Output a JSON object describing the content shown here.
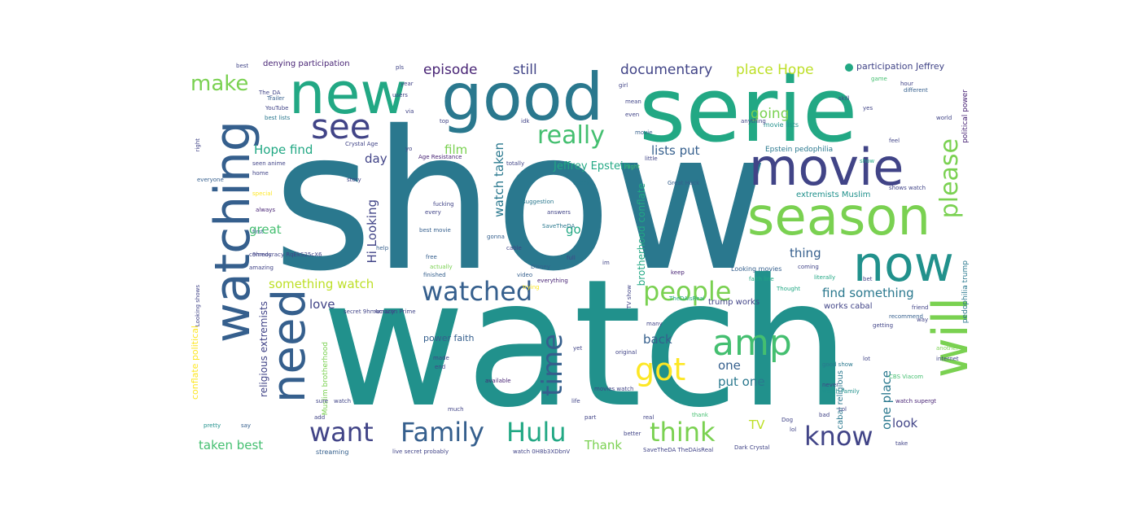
{
  "colors": {
    "background": "#ffffff",
    "palette": [
      "#440154",
      "#482475",
      "#414487",
      "#355f8d",
      "#2a788e",
      "#21918c",
      "#22a884",
      "#44bf70",
      "#7ad151",
      "#bddf26",
      "#fde725"
    ]
  },
  "words": [
    {
      "text": "show",
      "color": "#2a788e"
    },
    {
      "text": "watch",
      "color": "#21918c"
    },
    {
      "text": "serie",
      "color": "#22a884"
    },
    {
      "text": "good",
      "color": "#2a788e"
    },
    {
      "text": "new",
      "color": "#22a884"
    },
    {
      "text": "watching",
      "color": "#355f8d"
    },
    {
      "text": "movie",
      "color": "#414487"
    },
    {
      "text": "season",
      "color": "#7ad151"
    },
    {
      "text": "now",
      "color": "#21918c"
    },
    {
      "text": "will",
      "color": "#7ad151"
    },
    {
      "text": "need",
      "color": "#355f8d"
    },
    {
      "text": "see",
      "color": "#414487"
    },
    {
      "text": "amp",
      "color": "#44bf70"
    },
    {
      "text": "got",
      "color": "#fde725"
    },
    {
      "text": "time",
      "color": "#355f8d"
    },
    {
      "text": "watched",
      "color": "#355f8d"
    },
    {
      "text": "people",
      "color": "#7ad151"
    },
    {
      "text": "really",
      "color": "#44bf70"
    },
    {
      "text": "please",
      "color": "#7ad151"
    },
    {
      "text": "want",
      "color": "#414487"
    },
    {
      "text": "Family",
      "color": "#355f8d"
    },
    {
      "text": "Hulu",
      "color": "#22a884"
    },
    {
      "text": "think",
      "color": "#7ad151"
    },
    {
      "text": "know",
      "color": "#414487"
    },
    {
      "text": "make",
      "color": "#7ad151"
    },
    {
      "text": "episode",
      "color": "#482475"
    },
    {
      "text": "still",
      "color": "#414487"
    },
    {
      "text": "documentary",
      "color": "#414487"
    },
    {
      "text": "place Hope",
      "color": "#bddf26"
    },
    {
      "text": "going",
      "color": "#7ad151"
    },
    {
      "text": "Hope find",
      "color": "#22a884"
    },
    {
      "text": "film",
      "color": "#7ad151"
    },
    {
      "text": "day",
      "color": "#414487"
    },
    {
      "text": "great",
      "color": "#44bf70"
    },
    {
      "text": "lists put",
      "color": "#355f8d"
    },
    {
      "text": "Jeffrey Epstein",
      "color": "#22a884"
    },
    {
      "text": "watch taken",
      "color": "#2a788e"
    },
    {
      "text": "Hi Looking",
      "color": "#414487"
    },
    {
      "text": "go",
      "color": "#22a884"
    },
    {
      "text": "something watch",
      "color": "#bddf26"
    },
    {
      "text": "thing",
      "color": "#355f8d"
    },
    {
      "text": "find something",
      "color": "#2a788e"
    },
    {
      "text": "love",
      "color": "#414487"
    },
    {
      "text": "back",
      "color": "#355f8d"
    },
    {
      "text": "one",
      "color": "#355f8d"
    },
    {
      "text": "put one",
      "color": "#2a788e"
    },
    {
      "text": "one place",
      "color": "#2a788e"
    },
    {
      "text": "look",
      "color": "#414487"
    },
    {
      "text": "TV",
      "color": "#bddf26"
    },
    {
      "text": "Thank",
      "color": "#7ad151"
    },
    {
      "text": "taken best",
      "color": "#44bf70"
    },
    {
      "text": "denying participation",
      "color": "#482475"
    },
    {
      "text": "participation Jeffrey",
      "color": "#414487"
    },
    {
      "text": "brotherhood conflate",
      "color": "#22a884"
    },
    {
      "text": "religious extremists",
      "color": "#414487"
    },
    {
      "text": "conflate political",
      "color": "#fde725"
    },
    {
      "text": "power faith",
      "color": "#355f8d"
    },
    {
      "text": "Epstein pedophilia",
      "color": "#2a788e"
    },
    {
      "text": "extremists Muslim",
      "color": "#21918c"
    },
    {
      "text": "trump works",
      "color": "#414487"
    },
    {
      "text": "works cabal",
      "color": "#414487"
    },
    {
      "text": "cabal religious",
      "color": "#2a788e"
    },
    {
      "text": "political power",
      "color": "#482475"
    },
    {
      "text": "pedophilia trump",
      "color": "#2a788e"
    },
    {
      "text": "movie lists",
      "color": "#21918c"
    },
    {
      "text": "Looking movies",
      "color": "#355f8d"
    },
    {
      "text": "faith line",
      "color": "#22a884"
    },
    {
      "text": "Muslim brotherhood",
      "color": "#7ad151"
    },
    {
      "text": "secret 9hmocracy",
      "color": "#414487"
    },
    {
      "text": "9hmocracy RqEkS25cX6",
      "color": "#414487"
    },
    {
      "text": "best lists",
      "color": "#2a788e"
    },
    {
      "text": "YouTube",
      "color": "#414487"
    },
    {
      "text": "Trailer",
      "color": "#355f8d"
    },
    {
      "text": "The_DA",
      "color": "#414487"
    },
    {
      "text": "Crystal Age",
      "color": "#414487"
    },
    {
      "text": "Age Resistance",
      "color": "#482475"
    },
    {
      "text": "Dark Crystal",
      "color": "#414487"
    },
    {
      "text": "SaveTheDA TheDAisReal",
      "color": "#414487"
    },
    {
      "text": "watch 0H8b3XDbnV",
      "color": "#414487"
    },
    {
      "text": "live secret probably",
      "color": "#414487"
    },
    {
      "text": "streaming",
      "color": "#355f8d"
    },
    {
      "text": "best movie",
      "color": "#355f8d"
    },
    {
      "text": "Great Hack",
      "color": "#355f8d"
    },
    {
      "text": "CBS Viacom",
      "color": "#44bf70"
    },
    {
      "text": "watch Family",
      "color": "#21918c"
    },
    {
      "text": "watch supergt",
      "color": "#482475"
    },
    {
      "text": "Amazon Prime",
      "color": "#414487"
    },
    {
      "text": "everything",
      "color": "#482475"
    },
    {
      "text": "Disney",
      "color": "#355f8d"
    },
    {
      "text": "suggestion",
      "color": "#2a788e"
    },
    {
      "text": "literally",
      "color": "#22a884"
    },
    {
      "text": "good show",
      "color": "#2a788e"
    },
    {
      "text": "movies watch",
      "color": "#414487"
    },
    {
      "text": "shows watch",
      "color": "#414487"
    },
    {
      "text": "Thought",
      "color": "#22a884"
    },
    {
      "text": "recommend",
      "color": "#355f8d"
    },
    {
      "text": "different",
      "color": "#355f8d"
    },
    {
      "text": "anything",
      "color": "#414487"
    },
    {
      "text": "comedy",
      "color": "#414487"
    },
    {
      "text": "amazing",
      "color": "#414487"
    },
    {
      "text": "everyone",
      "color": "#355f8d"
    },
    {
      "text": "special",
      "color": "#fde725"
    },
    {
      "text": "always",
      "color": "#482475"
    },
    {
      "text": "actually",
      "color": "#7ad151"
    },
    {
      "text": "finished",
      "color": "#355f8d"
    },
    {
      "text": "original",
      "color": "#414487"
    },
    {
      "text": "available",
      "color": "#482475"
    },
    {
      "text": "another",
      "color": "#7ad151"
    },
    {
      "text": "internet",
      "color": "#414487"
    },
    {
      "text": "getting",
      "color": "#414487"
    },
    {
      "text": "trying",
      "color": "#fde725"
    },
    {
      "text": "video",
      "color": "#355f8d"
    },
    {
      "text": "story",
      "color": "#414487"
    },
    {
      "text": "check",
      "color": "#2a788e"
    },
    {
      "text": "fucking",
      "color": "#414487"
    },
    {
      "text": "gonna",
      "color": "#355f8d"
    },
    {
      "text": "better",
      "color": "#414487"
    },
    {
      "text": "pretty",
      "color": "#21918c"
    },
    {
      "text": "watch",
      "color": "#414487"
    },
    {
      "text": "movie",
      "color": "#355f8d"
    },
    {
      "text": "show",
      "color": "#22a884"
    },
    {
      "text": "thank",
      "color": "#44bf70"
    },
    {
      "text": "first",
      "color": "#355f8d"
    },
    {
      "text": "friend",
      "color": "#414487"
    },
    {
      "text": "coming",
      "color": "#414487"
    },
    {
      "text": "SaveTheDA",
      "color": "#2a788e"
    },
    {
      "text": "TheDAisReal",
      "color": "#22a884"
    },
    {
      "text": "cable",
      "color": "#414487"
    },
    {
      "text": "free",
      "color": "#355f8d"
    },
    {
      "text": "help",
      "color": "#355f8d"
    },
    {
      "text": "hour",
      "color": "#414487"
    },
    {
      "text": "game",
      "color": "#44bf70"
    },
    {
      "text": "keep",
      "color": "#482475"
    },
    {
      "text": "real",
      "color": "#414487"
    },
    {
      "text": "life",
      "color": "#414487"
    },
    {
      "text": "part",
      "color": "#414487"
    },
    {
      "text": "take",
      "color": "#414487"
    },
    {
      "text": "never",
      "color": "#414487"
    },
    {
      "text": "bad",
      "color": "#414487"
    },
    {
      "text": "lol",
      "color": "#414487"
    },
    {
      "text": "Dog",
      "color": "#414487"
    },
    {
      "text": "say",
      "color": "#355f8d"
    },
    {
      "text": "sure",
      "color": "#414487"
    },
    {
      "text": "add",
      "color": "#414487"
    },
    {
      "text": "made",
      "color": "#414487"
    },
    {
      "text": "end",
      "color": "#414487"
    },
    {
      "text": "yet",
      "color": "#414487"
    },
    {
      "text": "many",
      "color": "#414487"
    },
    {
      "text": "much",
      "color": "#414487"
    },
    {
      "text": "best",
      "color": "#414487"
    },
    {
      "text": "year",
      "color": "#414487"
    },
    {
      "text": "users",
      "color": "#414487"
    },
    {
      "text": "via",
      "color": "#414487"
    },
    {
      "text": "girl",
      "color": "#414487"
    },
    {
      "text": "even",
      "color": "#414487"
    },
    {
      "text": "little",
      "color": "#414487"
    },
    {
      "text": "night",
      "color": "#44bf70"
    },
    {
      "text": "totally",
      "color": "#414487"
    },
    {
      "text": "seen anime",
      "color": "#414487"
    },
    {
      "text": "home",
      "color": "#414487"
    },
    {
      "text": "every",
      "color": "#414487"
    },
    {
      "text": "answers",
      "color": "#414487"
    },
    {
      "text": "world",
      "color": "#414487"
    },
    {
      "text": "skill",
      "color": "#414487"
    },
    {
      "text": "yes",
      "color": "#414487"
    },
    {
      "text": "pls",
      "color": "#414487"
    },
    {
      "text": "right",
      "color": "#414487"
    },
    {
      "text": "Looking shows",
      "color": "#414487"
    },
    {
      "text": "TV show",
      "color": "#414487"
    },
    {
      "text": "Lol",
      "color": "#414487"
    },
    {
      "text": "lot",
      "color": "#414487"
    },
    {
      "text": "feel",
      "color": "#414487"
    },
    {
      "text": "bet",
      "color": "#414487"
    },
    {
      "text": "im",
      "color": "#414487"
    },
    {
      "text": "full",
      "color": "#414487"
    },
    {
      "text": "yo",
      "color": "#414487"
    },
    {
      "text": "way",
      "color": "#414487"
    },
    {
      "text": "mean",
      "color": "#414487"
    },
    {
      "text": "top",
      "color": "#414487"
    },
    {
      "text": "idk",
      "color": "#414487"
    }
  ]
}
